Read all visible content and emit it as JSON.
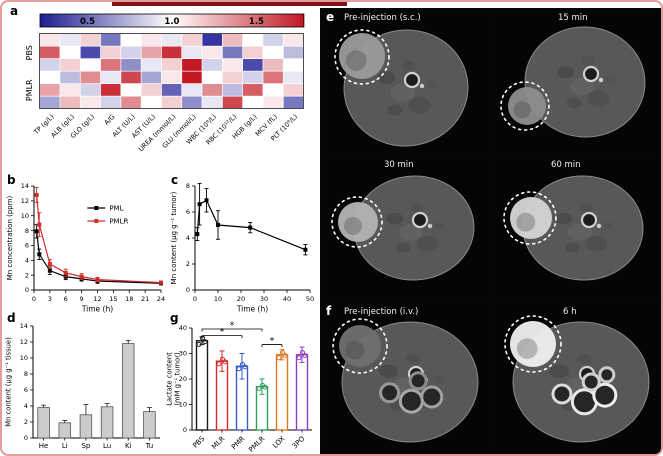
{
  "page": {
    "border_color": "#e49c9c",
    "accent_line_color": "#7e1416"
  },
  "panels": {
    "a": {
      "label": "a"
    },
    "b": {
      "label": "b"
    },
    "c": {
      "label": "c"
    },
    "d": {
      "label": "d"
    },
    "e": {
      "label": "e",
      "captions": [
        "Pre-injection (s.c.)",
        "15 min",
        "30 min",
        "60 min"
      ]
    },
    "f": {
      "label": "f",
      "captions": [
        "Pre-injection (i.v.)",
        "6 h"
      ]
    },
    "g": {
      "label": "g"
    }
  },
  "chart_data": [
    {
      "panel": "a",
      "type": "heatmap",
      "colorbar": {
        "ticks": [
          "0.5",
          "1.0",
          "1.5"
        ],
        "tick_positions": [
          0.18,
          0.5,
          0.82
        ],
        "min": 0.4,
        "max": 1.6,
        "colors": [
          "#1c1c8f",
          "#ffffff",
          "#c01824"
        ]
      },
      "row_groups": [
        "PBS",
        "PMLR"
      ],
      "columns": [
        "TP (g/L)",
        "ALB (g/L)",
        "GLO (g/L)",
        "A/G",
        "ALT (U/L)",
        "AST (U/L)",
        "UREA (mmol/L)",
        "GLU (mmol/L)",
        "WBC (10⁹/L)",
        "RBC (10¹²/L)",
        "HGB (g/L)",
        "MCV (fL)",
        "PLT (10⁹/L)"
      ],
      "values": [
        [
          1.05,
          0.95,
          1.1,
          0.7,
          1.0,
          1.05,
          0.95,
          1.1,
          0.55,
          1.15,
          1.0,
          0.9,
          1.05
        ],
        [
          1.35,
          1.0,
          0.6,
          1.1,
          0.9,
          1.2,
          1.45,
          0.95,
          1.05,
          0.7,
          1.1,
          1.0,
          0.85
        ],
        [
          0.9,
          1.1,
          1.0,
          1.3,
          0.75,
          0.95,
          1.1,
          1.5,
          0.9,
          1.05,
          0.6,
          1.15,
          1.0
        ],
        [
          1.0,
          0.85,
          1.25,
          0.95,
          1.4,
          0.8,
          1.05,
          1.5,
          1.0,
          1.1,
          0.9,
          1.3,
          0.95
        ],
        [
          1.2,
          1.05,
          0.9,
          1.45,
          1.0,
          1.1,
          0.65,
          0.95,
          1.25,
          0.85,
          1.35,
          1.0,
          1.1
        ],
        [
          0.8,
          1.15,
          1.05,
          0.9,
          1.25,
          1.0,
          1.1,
          0.75,
          0.95,
          1.4,
          1.0,
          1.05,
          0.7
        ]
      ]
    },
    {
      "panel": "b",
      "type": "line",
      "xlabel": "Time (h)",
      "ylabel": "Mn concentration (ppm)",
      "xlim": [
        0,
        24
      ],
      "ylim": [
        0,
        14
      ],
      "xticks": [
        0,
        3,
        6,
        9,
        12,
        15,
        18,
        21,
        24
      ],
      "yticks": [
        0,
        2,
        4,
        6,
        8,
        10,
        12,
        14
      ],
      "x": [
        0.5,
        1,
        3,
        6,
        9,
        12,
        24
      ],
      "series": [
        {
          "name": "PML",
          "color": "#000000",
          "values": [
            7.9,
            4.8,
            2.6,
            1.8,
            1.5,
            1.2,
            0.9
          ],
          "errors": [
            0.9,
            0.7,
            0.5,
            0.4,
            0.3,
            0.3,
            0.2
          ]
        },
        {
          "name": "PMLR",
          "color": "#d42a2a",
          "values": [
            12.8,
            8.8,
            3.5,
            2.3,
            1.8,
            1.4,
            1.0
          ],
          "errors": [
            1.0,
            1.6,
            0.6,
            0.5,
            0.4,
            0.3,
            0.2
          ]
        }
      ],
      "legend": [
        "PML",
        "PMLR"
      ]
    },
    {
      "panel": "c",
      "type": "line",
      "xlabel": "Time (h)",
      "ylabel": "Mn content (μg g⁻¹ tumor)",
      "xlim": [
        0,
        50
      ],
      "ylim": [
        0,
        8
      ],
      "xticks": [
        0,
        10,
        20,
        30,
        40,
        50
      ],
      "yticks": [
        0,
        2,
        4,
        6,
        8
      ],
      "x": [
        1,
        2,
        5,
        10,
        24,
        48
      ],
      "series": [
        {
          "name": "tumor Mn",
          "color": "#000000",
          "values": [
            4.3,
            6.6,
            6.9,
            5.0,
            4.8,
            3.1
          ],
          "errors": [
            0.5,
            1.6,
            0.9,
            1.1,
            0.4,
            0.4
          ]
        }
      ]
    },
    {
      "panel": "d",
      "type": "bar",
      "ylabel": "Mn content (μg g⁻¹ tissue)",
      "categories": [
        "He",
        "Li",
        "Sp",
        "Lu",
        "Ki",
        "Tu"
      ],
      "values": [
        3.8,
        1.9,
        2.9,
        3.9,
        11.8,
        3.3
      ],
      "errors": [
        0.3,
        0.3,
        1.3,
        0.4,
        0.4,
        0.5
      ],
      "ylim": [
        0,
        14
      ],
      "yticks": [
        0,
        2,
        4,
        6,
        8,
        10,
        12,
        14
      ],
      "bar_fill": "#cccccc",
      "bar_edge": "#555555"
    },
    {
      "panel": "g",
      "type": "bar-open",
      "ylabel": [
        "Lactate content",
        "(mM g⁻¹ tumor)"
      ],
      "categories": [
        "PBS",
        "MLR",
        "PMR",
        "PMLR",
        "LOX",
        "3PO"
      ],
      "values": [
        35,
        27,
        25,
        17,
        29.5,
        29.5
      ],
      "errors": [
        1.5,
        4,
        5,
        3,
        2,
        3
      ],
      "colors": [
        "#1a1a1a",
        "#d42a2a",
        "#3a5bc7",
        "#2fa05a",
        "#e07820",
        "#8a3fc0"
      ],
      "ylim": [
        0,
        40
      ],
      "yticks": [
        0,
        10,
        20,
        30,
        40
      ],
      "significance": [
        {
          "a": 0,
          "b": 2,
          "y": 37.0,
          "label": "*"
        },
        {
          "a": 0,
          "b": 3,
          "y": 39.6,
          "label": "*"
        },
        {
          "a": 3,
          "b": 4,
          "y": 33.5,
          "label": "*"
        }
      ]
    }
  ]
}
